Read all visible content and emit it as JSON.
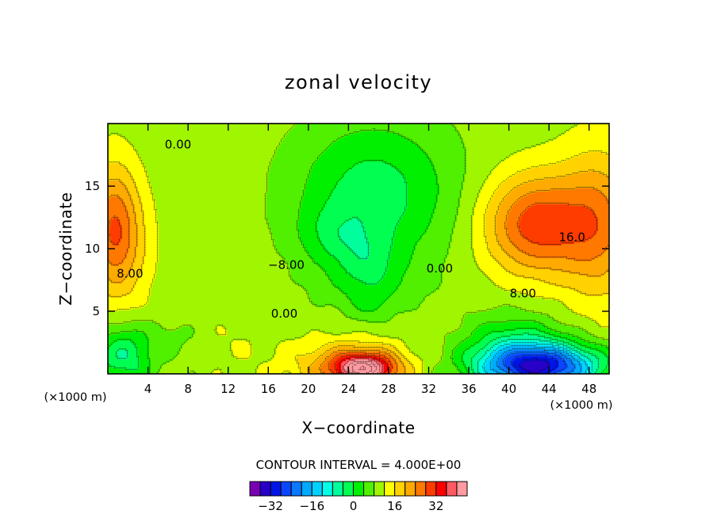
{
  "chart_data": {
    "type": "heatmap",
    "title": "zonal velocity",
    "xlabel": "X−coordinate",
    "ylabel": "Z−coordinate",
    "x_unit": "(×1000 m)",
    "y_unit": "(×1000 m)",
    "xlim": [
      0,
      50
    ],
    "ylim": [
      0,
      20
    ],
    "x_ticks": [
      4,
      8,
      12,
      16,
      20,
      24,
      28,
      32,
      36,
      40,
      44,
      48
    ],
    "x_tick_labels": [
      "4",
      "8",
      "12",
      "16",
      "20",
      "24",
      "28",
      "32",
      "36",
      "40",
      "44",
      "48"
    ],
    "y_ticks": [
      5,
      10,
      15
    ],
    "y_tick_labels": [
      "5",
      "10",
      "15"
    ],
    "contour_interval_text": "CONTOUR INTERVAL = 4.000E+00",
    "contour_interval": 4,
    "levels": [
      -36,
      -32,
      -28,
      -24,
      -20,
      -16,
      -12,
      -8,
      -4,
      0,
      4,
      8,
      12,
      16,
      20,
      24,
      28,
      32,
      36
    ],
    "colorbar_colors": [
      "#7a00b4",
      "#2800c8",
      "#0014e6",
      "#0a46ff",
      "#0a78ff",
      "#00aaff",
      "#00d2ff",
      "#00ffe6",
      "#00ff9c",
      "#00ff50",
      "#00f000",
      "#50f000",
      "#a0f500",
      "#ffff00",
      "#ffd200",
      "#ffaa00",
      "#ff7800",
      "#ff3c00",
      "#ff0000",
      "#ff5a64",
      "#ff9aa0"
    ],
    "colorbar_tick_values": [
      -32,
      -16,
      0,
      16,
      32
    ],
    "colorbar_tick_labels": [
      "−32",
      "−16",
      "0",
      "16",
      "32"
    ],
    "contour_labels": [
      {
        "text": "0.00",
        "x": 7,
        "z": 18
      },
      {
        "text": "−8.00",
        "x": 17.8,
        "z": 8.4
      },
      {
        "text": "8.00",
        "x": 2.2,
        "z": 7.7
      },
      {
        "text": "0.00",
        "x": 17.6,
        "z": 4.5
      },
      {
        "text": "0.00",
        "x": 33.1,
        "z": 8.1
      },
      {
        "text": "8.00",
        "x": 41.4,
        "z": 6.1
      },
      {
        "text": "16.0",
        "x": 46.3,
        "z": 10.6
      }
    ],
    "field_blobs": [
      {
        "x": 26.5,
        "z": 14.5,
        "sx": 8,
        "sz": 6,
        "v": -12
      },
      {
        "x": 23,
        "z": 11,
        "sx": 4,
        "sz": 2.5,
        "v": -6
      },
      {
        "x": 26,
        "z": 9,
        "sx": 3,
        "sz": 2,
        "v": -5
      },
      {
        "x": 26,
        "z": 5.5,
        "sx": 2,
        "sz": 1.5,
        "v": -4
      },
      {
        "x": 26,
        "z": 7,
        "sx": 5,
        "sz": 2,
        "v": -4
      },
      {
        "x": 42.5,
        "z": 12,
        "sx": 5,
        "sz": 4,
        "v": 20
      },
      {
        "x": 49,
        "z": 12,
        "sx": 4,
        "sz": 6,
        "v": 14
      },
      {
        "x": 0.5,
        "z": 12,
        "sx": 2.5,
        "sz": 5,
        "v": 14
      },
      {
        "x": 1.5,
        "z": 10,
        "sx": 3,
        "sz": 5,
        "v": 6
      },
      {
        "x": 25.5,
        "z": 0.4,
        "sx": 3,
        "sz": 1.2,
        "v": 30
      },
      {
        "x": 24,
        "z": 0.8,
        "sx": 6,
        "sz": 2,
        "v": 12
      },
      {
        "x": 43,
        "z": 0.6,
        "sx": 6,
        "sz": 1.8,
        "v": -40
      },
      {
        "x": 40.5,
        "z": 2.5,
        "sx": 5,
        "sz": 2.5,
        "v": -10
      },
      {
        "x": 1.5,
        "z": 1.5,
        "sx": 3,
        "sz": 2.5,
        "v": -14
      },
      {
        "x": 12,
        "z": 3,
        "sx": 4,
        "sz": 2,
        "v": 2
      },
      {
        "x": 7,
        "z": 3,
        "sx": 3,
        "sz": 1.5,
        "v": -3
      }
    ]
  }
}
